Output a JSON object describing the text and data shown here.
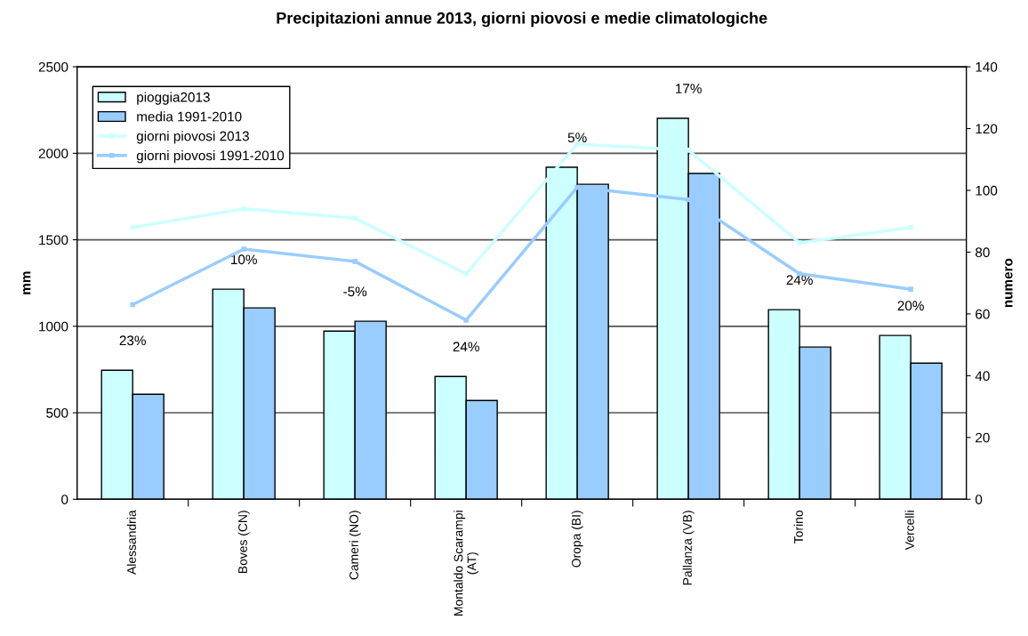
{
  "chart_data": {
    "type": "bar",
    "title": "Precipitazioni annue 2013, giorni piovosi e medie climatologiche",
    "categories": [
      "Alessandria",
      "Boves (CN)",
      "Cameri (NO)",
      "Montaldo Scarampi\n(AT)",
      "Oropa (BI)",
      "Pallanza (VB)",
      "Torino",
      "Vercelli"
    ],
    "series": [
      {
        "name": "pioggia2013",
        "color": "#ccffff",
        "values": [
          746,
          1214,
          972,
          710,
          1919,
          2202,
          1096,
          947
        ]
      },
      {
        "name": "media 1991-2010",
        "color": "#99ccff",
        "values": [
          607,
          1106,
          1029,
          571,
          1821,
          1883,
          880,
          787
        ]
      },
      {
        "name": "giorni piovosi 2013",
        "type": "line",
        "axis": "y2",
        "color": "#ccffff",
        "values": [
          88,
          94,
          91,
          73,
          115,
          113,
          83,
          88
        ]
      },
      {
        "name": "giorni piovosi 1991-2010",
        "type": "line",
        "axis": "y2",
        "color": "#99ccff",
        "values": [
          63,
          81,
          77,
          58,
          101,
          97,
          73,
          68
        ]
      }
    ],
    "ylabel": "mm",
    "y2label": "numero",
    "ylim": [
      0,
      2500
    ],
    "yticks": [
      0,
      500,
      1000,
      1500,
      2000,
      2500
    ],
    "y2lim": [
      0,
      140
    ],
    "y2ticks": [
      0,
      20,
      40,
      60,
      80,
      100,
      120,
      140
    ],
    "grid": "y",
    "legend": "top left",
    "marker": "square",
    "line_style": "solid",
    "annotations": [
      {
        "text": "23%",
        "x": "Alessandria",
        "y": 746
      },
      {
        "text": "10%",
        "x": "Boves (CN)",
        "y": 1214
      },
      {
        "text": "-5%",
        "x": "Cameri (NO)",
        "y": 1029
      },
      {
        "text": "24%",
        "x": "Montaldo Scarampi\n(AT)",
        "y": 710
      },
      {
        "text": "5%",
        "x": "Oropa (BI)",
        "y": 1919
      },
      {
        "text": "17%",
        "x": "Pallanza (VB)",
        "y": 2202
      },
      {
        "text": "24%",
        "x": "Torino",
        "y": 1096
      },
      {
        "text": "20%",
        "x": "Vercelli",
        "y": 947
      }
    ]
  }
}
